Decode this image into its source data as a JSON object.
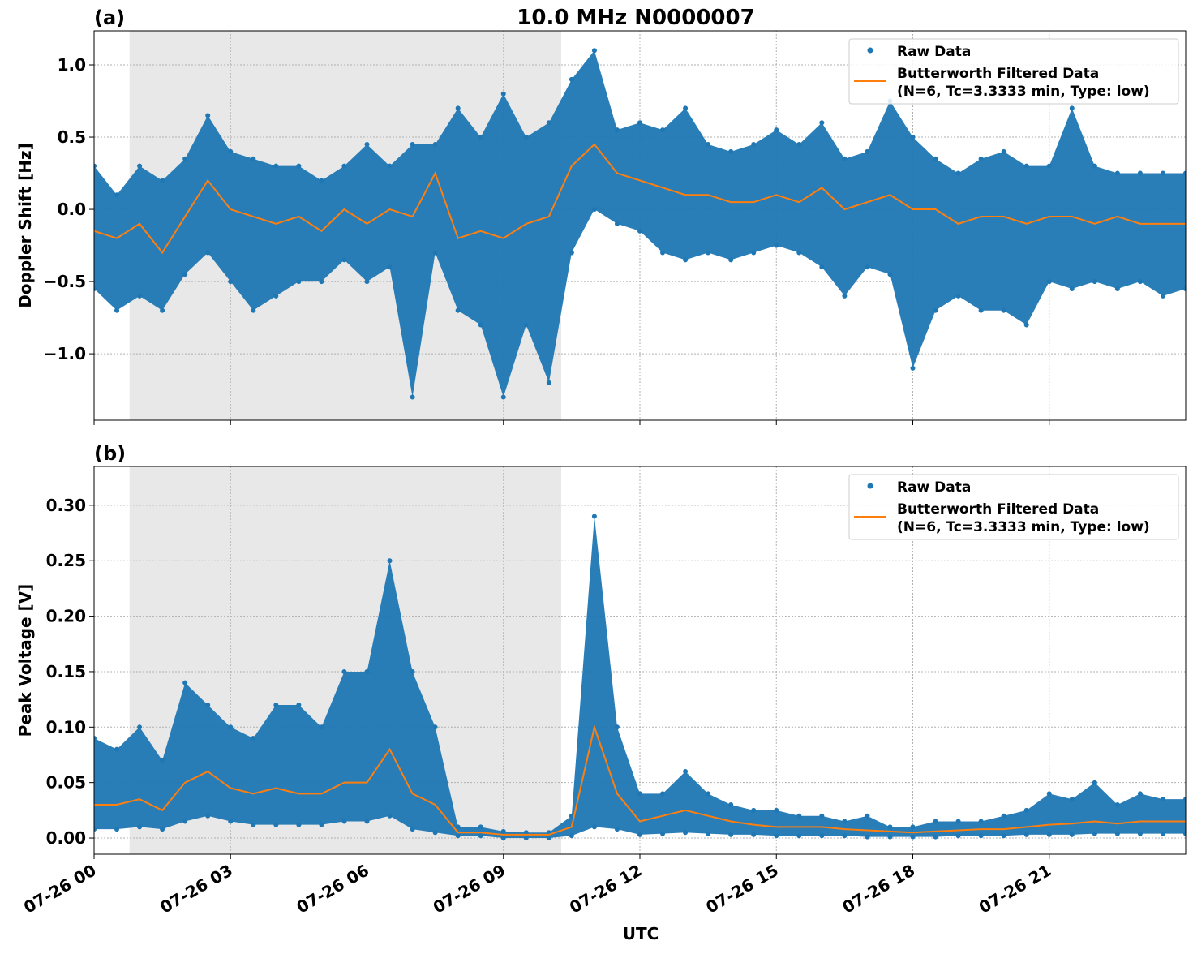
{
  "title": "10.0 MHz N0000007",
  "colors": {
    "raw": "#1f77b4",
    "filtered": "#ff7f0e",
    "shade": "#e8e8e8",
    "grid": "#b0b0b0"
  },
  "legend": {
    "raw_label": "Raw Data",
    "filtered_label_1": "Butterworth Filtered Data",
    "filtered_label_2": "(N=6, Tc=3.3333 min, Type: low)",
    "placement": "upper-right"
  },
  "xlabel": "UTC",
  "x_ticks": [
    {
      "hour": 0,
      "label": "07-26 00"
    },
    {
      "hour": 3,
      "label": "07-26 03"
    },
    {
      "hour": 6,
      "label": "07-26 06"
    },
    {
      "hour": 9,
      "label": "07-26 09"
    },
    {
      "hour": 12,
      "label": "07-26 12"
    },
    {
      "hour": 15,
      "label": "07-26 15"
    },
    {
      "hour": 18,
      "label": "07-26 18"
    },
    {
      "hour": 21,
      "label": "07-26 21"
    }
  ],
  "chart_data": [
    {
      "type": "scatter+line",
      "panel_label": "(a)",
      "ylabel": "Doppler Shift [Hz]",
      "xlim_hours_utc": [
        0,
        24
      ],
      "ylim": [
        -1.46,
        1.236
      ],
      "y_ticks": [
        {
          "v": 1.0,
          "label": "1.0"
        },
        {
          "v": 0.5,
          "label": "0.5"
        },
        {
          "v": 0.0,
          "label": "0.0"
        },
        {
          "v": -0.5,
          "label": "−0.5"
        },
        {
          "v": -1.0,
          "label": "−1.0"
        }
      ],
      "grid": true,
      "shaded_interval_hours": [
        0.78,
        10.27
      ],
      "x_hours": [
        0,
        0.5,
        1,
        1.5,
        2,
        2.5,
        3,
        3.5,
        4,
        4.5,
        5,
        5.5,
        6,
        6.5,
        7,
        7.5,
        8,
        8.5,
        9,
        9.5,
        10,
        10.5,
        11,
        11.5,
        12,
        12.5,
        13,
        13.5,
        14,
        14.5,
        15,
        15.5,
        16,
        16.5,
        17,
        17.5,
        18,
        18.5,
        19,
        19.5,
        20,
        20.5,
        21,
        21.5,
        22,
        22.5,
        23,
        23.5,
        24
      ],
      "filtered": [
        -0.15,
        -0.2,
        -0.1,
        -0.3,
        -0.05,
        0.2,
        0.0,
        -0.05,
        -0.1,
        -0.05,
        -0.15,
        0.0,
        -0.1,
        0.0,
        -0.05,
        0.25,
        -0.2,
        -0.15,
        -0.2,
        -0.1,
        -0.05,
        0.3,
        0.45,
        0.25,
        0.2,
        0.15,
        0.1,
        0.1,
        0.05,
        0.05,
        0.1,
        0.05,
        0.15,
        0.0,
        0.05,
        0.1,
        0.0,
        0.0,
        -0.1,
        -0.05,
        -0.05,
        -0.1,
        -0.05,
        -0.05,
        -0.1,
        -0.05,
        -0.1,
        -0.1,
        -0.1
      ],
      "raw_low": [
        -0.55,
        -0.7,
        -0.6,
        -0.7,
        -0.45,
        -0.3,
        -0.5,
        -0.7,
        -0.6,
        -0.5,
        -0.5,
        -0.35,
        -0.5,
        -0.4,
        -1.3,
        -0.3,
        -0.7,
        -0.8,
        -1.3,
        -0.8,
        -1.2,
        -0.3,
        0.0,
        -0.1,
        -0.15,
        -0.3,
        -0.35,
        -0.3,
        -0.35,
        -0.3,
        -0.25,
        -0.3,
        -0.4,
        -0.6,
        -0.4,
        -0.45,
        -1.1,
        -0.7,
        -0.6,
        -0.7,
        -0.7,
        -0.8,
        -0.5,
        -0.55,
        -0.5,
        -0.55,
        -0.5,
        -0.6,
        -0.55
      ],
      "raw_high": [
        0.3,
        0.1,
        0.3,
        0.2,
        0.35,
        0.65,
        0.4,
        0.35,
        0.3,
        0.3,
        0.2,
        0.3,
        0.45,
        0.3,
        0.45,
        0.45,
        0.7,
        0.5,
        0.8,
        0.5,
        0.6,
        0.9,
        1.1,
        0.55,
        0.6,
        0.55,
        0.7,
        0.45,
        0.4,
        0.45,
        0.55,
        0.45,
        0.6,
        0.35,
        0.4,
        0.75,
        0.5,
        0.35,
        0.25,
        0.35,
        0.4,
        0.3,
        0.3,
        0.7,
        0.3,
        0.25,
        0.25,
        0.25,
        0.25
      ]
    },
    {
      "type": "scatter+line",
      "panel_label": "(b)",
      "ylabel": "Peak Voltage [V]",
      "xlim_hours_utc": [
        0,
        24
      ],
      "ylim": [
        -0.0146,
        0.335
      ],
      "y_ticks": [
        {
          "v": 0.0,
          "label": "0.00"
        },
        {
          "v": 0.05,
          "label": "0.05"
        },
        {
          "v": 0.1,
          "label": "0.10"
        },
        {
          "v": 0.15,
          "label": "0.15"
        },
        {
          "v": 0.2,
          "label": "0.20"
        },
        {
          "v": 0.25,
          "label": "0.25"
        },
        {
          "v": 0.3,
          "label": "0.30"
        }
      ],
      "grid": true,
      "shaded_interval_hours": [
        0.78,
        10.27
      ],
      "x_hours": [
        0,
        0.5,
        1,
        1.5,
        2,
        2.5,
        3,
        3.5,
        4,
        4.5,
        5,
        5.5,
        6,
        6.5,
        7,
        7.5,
        8,
        8.5,
        9,
        9.5,
        10,
        10.5,
        11,
        11.5,
        12,
        12.5,
        13,
        13.5,
        14,
        14.5,
        15,
        15.5,
        16,
        16.5,
        17,
        17.5,
        18,
        18.5,
        19,
        19.5,
        20,
        20.5,
        21,
        21.5,
        22,
        22.5,
        23,
        23.5,
        24
      ],
      "filtered": [
        0.03,
        0.03,
        0.035,
        0.025,
        0.05,
        0.06,
        0.045,
        0.04,
        0.045,
        0.04,
        0.04,
        0.05,
        0.05,
        0.08,
        0.04,
        0.03,
        0.005,
        0.005,
        0.003,
        0.003,
        0.003,
        0.01,
        0.1,
        0.04,
        0.015,
        0.02,
        0.025,
        0.02,
        0.015,
        0.012,
        0.01,
        0.01,
        0.01,
        0.008,
        0.007,
        0.006,
        0.005,
        0.006,
        0.007,
        0.008,
        0.008,
        0.01,
        0.012,
        0.013,
        0.015,
        0.013,
        0.015,
        0.015,
        0.015
      ],
      "raw_low": [
        0.008,
        0.008,
        0.01,
        0.008,
        0.015,
        0.02,
        0.015,
        0.012,
        0.012,
        0.012,
        0.012,
        0.015,
        0.015,
        0.02,
        0.008,
        0.005,
        0.002,
        0.002,
        0.0,
        0.0,
        0.0,
        0.002,
        0.01,
        0.008,
        0.003,
        0.004,
        0.005,
        0.004,
        0.003,
        0.003,
        0.002,
        0.002,
        0.002,
        0.002,
        0.001,
        0.001,
        0.001,
        0.001,
        0.002,
        0.002,
        0.002,
        0.003,
        0.003,
        0.003,
        0.004,
        0.004,
        0.004,
        0.004,
        0.004
      ],
      "raw_high": [
        0.09,
        0.08,
        0.1,
        0.07,
        0.14,
        0.12,
        0.1,
        0.09,
        0.12,
        0.12,
        0.1,
        0.15,
        0.15,
        0.25,
        0.15,
        0.1,
        0.01,
        0.01,
        0.006,
        0.005,
        0.005,
        0.02,
        0.29,
        0.1,
        0.04,
        0.04,
        0.06,
        0.04,
        0.03,
        0.025,
        0.025,
        0.02,
        0.02,
        0.015,
        0.02,
        0.01,
        0.01,
        0.015,
        0.015,
        0.015,
        0.02,
        0.025,
        0.04,
        0.035,
        0.05,
        0.03,
        0.04,
        0.035,
        0.035
      ]
    }
  ]
}
